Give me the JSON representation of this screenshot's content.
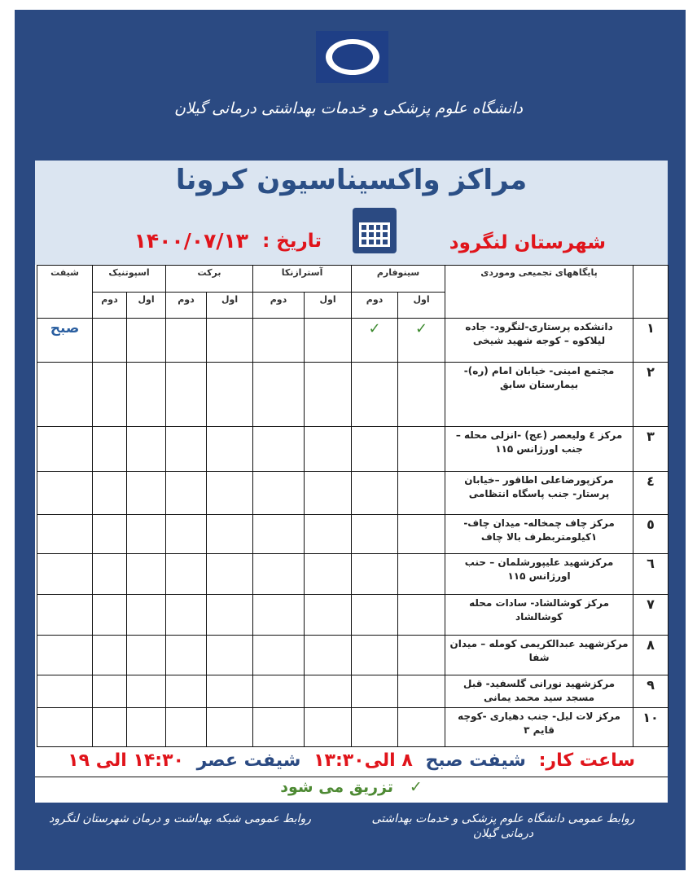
{
  "header": {
    "university": "دانشگاه علوم پزشکی و خدمات بهداشتی درمانی گیلان",
    "title": "مراکز واکسیناسیون کرونا",
    "city": "شهرستان لنگرود",
    "date_label": "تاریخ :",
    "date": "۱۴۰۰/۰۷/۱۳"
  },
  "table": {
    "headers": {
      "centers": "پایگاههای تجمیعی وموردی",
      "sinopharm": "سینوفارم",
      "astrazeneca": "آسترازنکا",
      "barekat": "برکت",
      "sputnik": "اسپوتنیک",
      "shift": "شیفت",
      "first": "اول",
      "second": "دوم"
    },
    "rows": [
      {
        "num": "۱",
        "name": "دانشکده پرستاری-لنگرود- جاده لیلاکوه – کوجه شهید شیخی",
        "sino_first": "✓",
        "sino_second": "✓",
        "shift": "صبح"
      },
      {
        "num": "۲",
        "name": "مجتمع امینی- خیابان امام (ره)- بیمارستان سابق"
      },
      {
        "num": "۳",
        "name": "مرکز ٤ ولیعصر (عج) -انزلی محله – جنب اورژانس ۱۱۵"
      },
      {
        "num": "٤",
        "name": "مرکزپورضاعلی اطاقور –خیابان پرستار- جنب پاسگاه انتظامی"
      },
      {
        "num": "٥",
        "name": "مرکز چاف چمخاله- میدان چاف- ۱کیلومتربطرف بالا چاف"
      },
      {
        "num": "٦",
        "name": "مرکزشهید علیپورشلمان – حنب اورژانس ۱۱۵"
      },
      {
        "num": "۷",
        "name": "مرکز کوشالشاد- سادات محله کوشالشاد"
      },
      {
        "num": "۸",
        "name": "مرکزشهید عبدالکریمی کومله – میدان شفا"
      },
      {
        "num": "۹",
        "name": "مرکزشهید نورانی گلسفید- قبل مسجد سید محمد یمانی"
      },
      {
        "num": "۱۰",
        "name": "مرکز لات لیل- جنب دهیاری -کوچه قایم ۳"
      }
    ]
  },
  "hours": {
    "label": "ساعت کار:",
    "morning_label": "شیفت صبح",
    "morning": "۸ الی۱۳:۳۰",
    "evening_label": "شیفت عصر",
    "evening": "۱۴:۳۰ الی ۱۹"
  },
  "legend": {
    "check": "✓",
    "text": "تزریق می شود"
  },
  "footer": {
    "right": "روابط عمومی دانشگاه علوم پزشکی و خدمات بهداشتی درمانی گیلان",
    "left": "روابط عمومی شبکه بهداشت و درمان شهرستان لنگرود"
  },
  "colors": {
    "frame": "#2b4a82",
    "red": "#e0141b",
    "green": "#4e8a34",
    "header_band": "#dbe5f1"
  }
}
